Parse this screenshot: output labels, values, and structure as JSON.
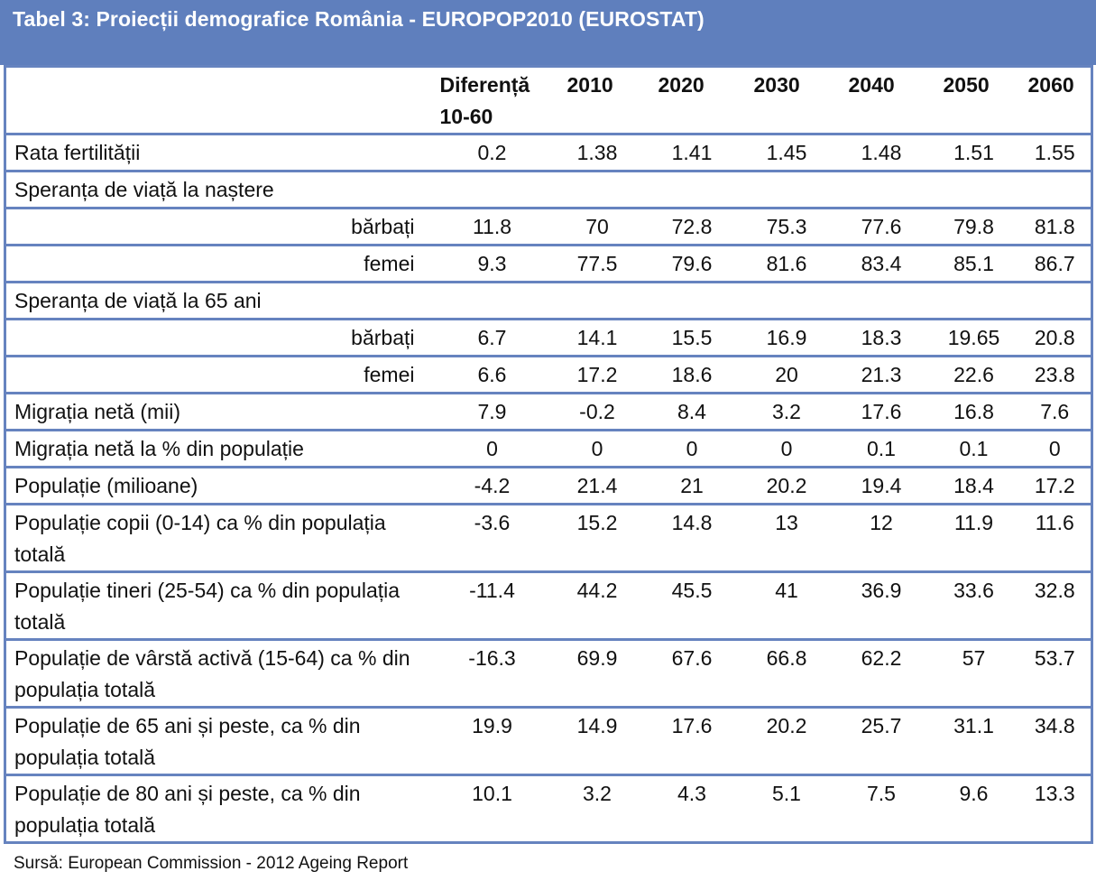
{
  "title": "Tabel 3: Proiecții demografice România - EUROPOP2010 (EUROSTAT)",
  "columns": [
    "Diferență 10-60",
    "2010",
    "2020",
    "2030",
    "2040",
    "2050",
    "2060"
  ],
  "column_diff_line1": "Diferență",
  "column_diff_line2": "10-60",
  "rows": [
    {
      "label": "Rata fertilității",
      "values": [
        "0.2",
        "1.38",
        "1.41",
        "1.45",
        "1.48",
        "1.51",
        "1.55"
      ]
    },
    {
      "label": "Speranța de viață la naștere",
      "values": []
    },
    {
      "label": "bărbați",
      "values": [
        "11.8",
        "70",
        "72.8",
        "75.3",
        "77.6",
        "79.8",
        "81.8"
      ]
    },
    {
      "label": "femei",
      "values": [
        "9.3",
        "77.5",
        "79.6",
        "81.6",
        "83.4",
        "85.1",
        "86.7"
      ]
    },
    {
      "label": "Speranța de viață la 65 ani",
      "values": []
    },
    {
      "label": "bărbați",
      "values": [
        "6.7",
        "14.1",
        "15.5",
        "16.9",
        "18.3",
        "19.65",
        "20.8"
      ]
    },
    {
      "label": "femei",
      "values": [
        "6.6",
        "17.2",
        "18.6",
        "20",
        "21.3",
        "22.6",
        "23.8"
      ]
    },
    {
      "label": "Migrația netă (mii)",
      "values": [
        "7.9",
        "-0.2",
        "8.4",
        "3.2",
        "17.6",
        "16.8",
        "7.6"
      ]
    },
    {
      "label": "Migrația netă la % din populație",
      "values": [
        "0",
        "0",
        "0",
        "0",
        "0.1",
        "0.1",
        "0"
      ]
    },
    {
      "label": "Populație (milioane)",
      "values": [
        "-4.2",
        "21.4",
        "21",
        "20.2",
        "19.4",
        "18.4",
        "17.2"
      ]
    },
    {
      "label": "Populație copii (0-14) ca % din populația totală",
      "values": [
        "-3.6",
        "15.2",
        "14.8",
        "13",
        "12",
        "11.9",
        "11.6"
      ]
    },
    {
      "label": "Populație tineri (25-54) ca % din populația totală",
      "values": [
        "-11.4",
        "44.2",
        "45.5",
        "41",
        "36.9",
        "33.6",
        "32.8"
      ]
    },
    {
      "label": "Populație de vârstă activă (15-64) ca % din populația totală",
      "values": [
        "-16.3",
        "69.9",
        "67.6",
        "66.8",
        "62.2",
        "57",
        "53.7"
      ]
    },
    {
      "label": "Populație de 65 ani și peste, ca % din populația totală",
      "values": [
        "19.9",
        "14.9",
        "17.6",
        "20.2",
        "25.7",
        "31.1",
        "34.8"
      ]
    },
    {
      "label": "Populație de 80 ani și peste, ca % din populația totală",
      "values": [
        "10.1",
        "3.2",
        "4.3",
        "5.1",
        "7.5",
        "9.6",
        "13.3"
      ]
    }
  ],
  "source": "Sursă: European Commission - 2012 Ageing Report",
  "colors": {
    "header_band": "#5f7fbd",
    "borders": "#6683bf"
  }
}
